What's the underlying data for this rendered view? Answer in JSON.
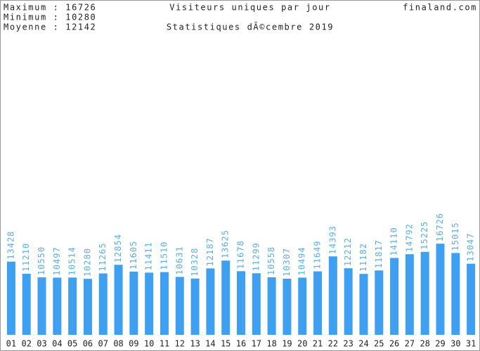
{
  "chart_data": {
    "type": "bar",
    "title": "Visiteurs uniques par jour",
    "subtitle": "Statistiques dÃ©cembre 2019",
    "site": "finaland.com",
    "annotations": [
      "Maximum : 16726",
      "Minimum : 10280",
      "Moyenne : 12142"
    ],
    "categories": [
      "01",
      "02",
      "03",
      "04",
      "05",
      "06",
      "07",
      "08",
      "09",
      "10",
      "11",
      "12",
      "13",
      "14",
      "15",
      "16",
      "17",
      "18",
      "19",
      "20",
      "21",
      "22",
      "23",
      "24",
      "25",
      "26",
      "27",
      "28",
      "29",
      "30",
      "31"
    ],
    "values": [
      13428,
      11210,
      10550,
      10497,
      10514,
      10280,
      11265,
      12854,
      11605,
      11411,
      11510,
      10631,
      10328,
      12187,
      13625,
      11678,
      11299,
      10558,
      10307,
      10494,
      11649,
      14393,
      12212,
      11182,
      11817,
      14110,
      14792,
      15225,
      16726,
      15015,
      13047
    ],
    "color": "#3fa0f2",
    "label_color": "#59aee6",
    "ylim": [
      0,
      60000
    ]
  }
}
